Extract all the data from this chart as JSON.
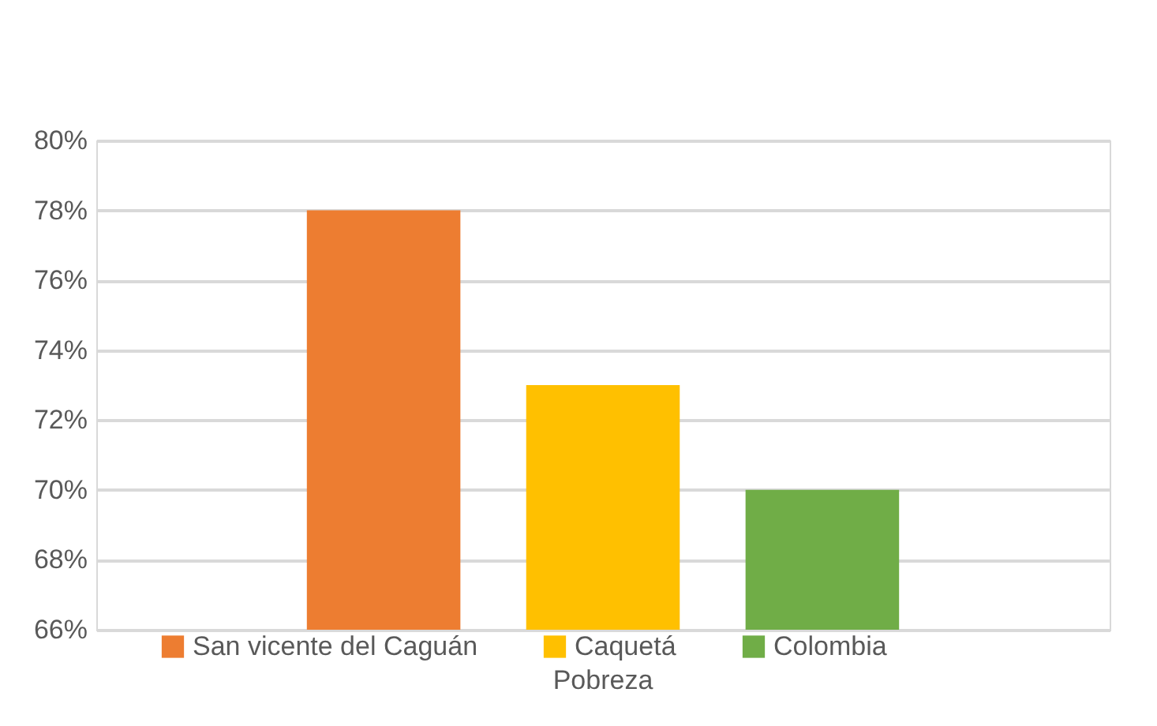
{
  "chart_data": {
    "type": "bar",
    "categories": [
      "Pobreza"
    ],
    "series": [
      {
        "name": "San vicente del Caguán",
        "color": "#ed7d31",
        "values": [
          78
        ]
      },
      {
        "name": "Caquetá",
        "color": "#ffc000",
        "values": [
          73
        ]
      },
      {
        "name": "Colombia",
        "color": "#70ad47",
        "values": [
          70
        ]
      }
    ],
    "ylim": [
      66,
      80
    ],
    "yticks": [
      {
        "value": 66,
        "label": "66%"
      },
      {
        "value": 68,
        "label": "68%"
      },
      {
        "value": 70,
        "label": "70%"
      },
      {
        "value": 72,
        "label": "72%"
      },
      {
        "value": 74,
        "label": "74%"
      },
      {
        "value": 76,
        "label": "76%"
      },
      {
        "value": 78,
        "label": "78%"
      },
      {
        "value": 80,
        "label": "80%"
      }
    ],
    "grid": "y",
    "legend": "bottom"
  }
}
